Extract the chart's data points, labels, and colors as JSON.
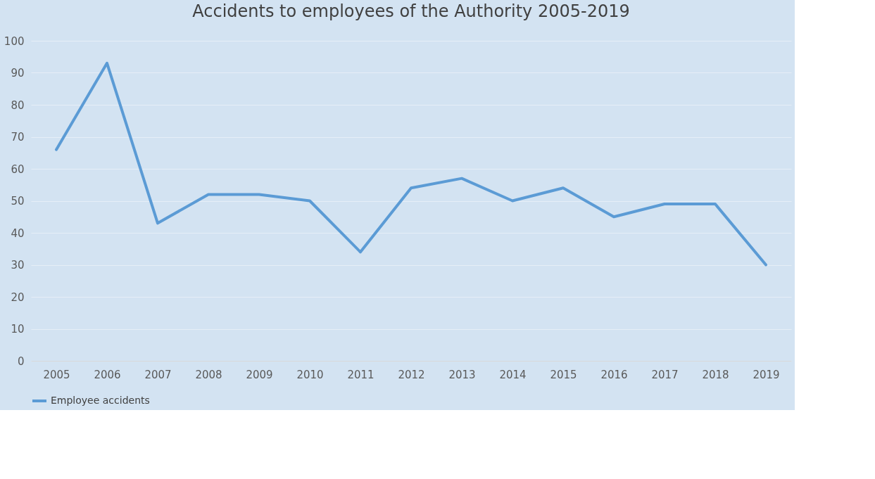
{
  "chart_data": {
    "type": "line",
    "title": "Accidents to employees of the Authority 2005-2019",
    "categories": [
      "2005",
      "2006",
      "2007",
      "2008",
      "2009",
      "2010",
      "2011",
      "2012",
      "2013",
      "2014",
      "2015",
      "2016",
      "2017",
      "2018",
      "2019"
    ],
    "series": [
      {
        "name": "Employee accidents",
        "color": "#5b9bd5",
        "values": [
          66,
          93,
          43,
          52,
          52,
          50,
          34,
          54,
          57,
          50,
          54,
          45,
          49,
          49,
          30
        ]
      }
    ],
    "ylim": [
      0,
      100
    ],
    "yticks": [
      0,
      10,
      20,
      30,
      40,
      50,
      60,
      70,
      80,
      90,
      100
    ],
    "grid": "y",
    "legend": "bottom",
    "marker": "none",
    "line_style": "solid"
  }
}
